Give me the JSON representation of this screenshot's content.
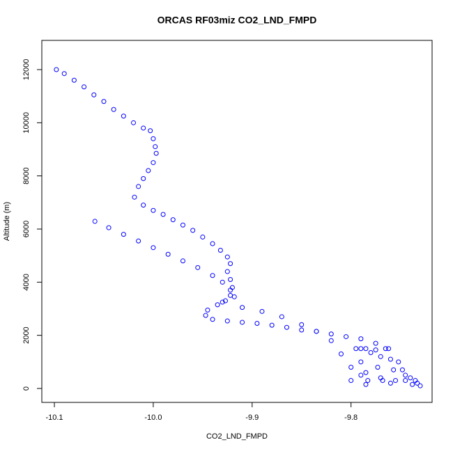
{
  "chart_data": {
    "type": "scatter",
    "title": "ORCAS RF03miz CO2_LND_FMPD",
    "x_label": "CO2_LND_FMPD",
    "y_label": "Altitude (m)",
    "color": "#0000ff",
    "xlim": [
      -10.1127,
      -9.718
    ],
    "ylim": [
      -524,
      13100
    ],
    "xticks": [
      -10.1,
      {
        "value": -10.0,
        "label": "-10.0"
      },
      -9.9,
      -9.8
    ],
    "yticks": [
      0,
      2000,
      4000,
      6000,
      8000,
      10000,
      12000
    ],
    "x": [
      -10.098,
      -10.09,
      -10.08,
      -10.07,
      -10.06,
      -10.05,
      -10.04,
      -10.03,
      -10.02,
      -10.01,
      -10.003,
      -10.0,
      -9.998,
      -9.997,
      -10.0,
      -10.005,
      -10.01,
      -10.015,
      -10.019,
      -10.01,
      -10.0,
      -9.99,
      -9.98,
      -9.97,
      -9.96,
      -9.95,
      -9.94,
      -9.932,
      -9.925,
      -9.922,
      -9.925,
      -9.922,
      -9.92,
      -9.922,
      -9.927,
      -9.935,
      -9.945,
      -9.947,
      -9.94,
      -9.925,
      -9.91,
      -9.895,
      -9.88,
      -9.865,
      -9.85,
      -9.835,
      -9.82,
      -9.805,
      -9.79,
      -9.775,
      -10.059,
      -10.045,
      -10.03,
      -10.015,
      -10.0,
      -9.985,
      -9.97,
      -9.955,
      -9.94,
      -9.93,
      -9.922,
      -9.918,
      -9.93,
      -9.91,
      -9.89,
      -9.87,
      -9.85,
      -9.835,
      -9.82,
      -9.81,
      -9.8,
      -9.79,
      -9.8,
      -9.795,
      -9.79,
      -9.785,
      -9.79,
      -9.785,
      -9.783,
      -9.785,
      -9.78,
      -9.775,
      -9.77,
      -9.773,
      -9.77,
      -9.768,
      -9.765,
      -9.762,
      -9.76,
      -9.757,
      -9.755,
      -9.76,
      -9.752,
      -9.748,
      -9.745,
      -9.74,
      -9.735,
      -9.733,
      -9.73,
      -9.738,
      -9.745
    ],
    "values": [
      12000,
      11850,
      11600,
      11350,
      11050,
      10800,
      10500,
      10250,
      10000,
      9800,
      9700,
      9400,
      9100,
      8850,
      8500,
      8200,
      7900,
      7600,
      7200,
      6900,
      6700,
      6550,
      6350,
      6150,
      5950,
      5700,
      5450,
      5200,
      4950,
      4700,
      4400,
      4100,
      3800,
      3500,
      3300,
      3150,
      2950,
      2750,
      2600,
      2540,
      2490,
      2450,
      2380,
      2300,
      2200,
      2150,
      2050,
      1950,
      1870,
      1700,
      6290,
      6050,
      5800,
      5550,
      5300,
      5050,
      4800,
      4550,
      4250,
      4000,
      3700,
      3450,
      3250,
      3050,
      2900,
      2700,
      2400,
      2150,
      1800,
      1300,
      800,
      500,
      300,
      1500,
      1500,
      1500,
      1000,
      600,
      300,
      150,
      1350,
      1450,
      1200,
      800,
      400,
      300,
      1500,
      1500,
      1100,
      700,
      300,
      200,
      1000,
      700,
      500,
      400,
      300,
      200,
      100,
      150,
      300
    ]
  }
}
